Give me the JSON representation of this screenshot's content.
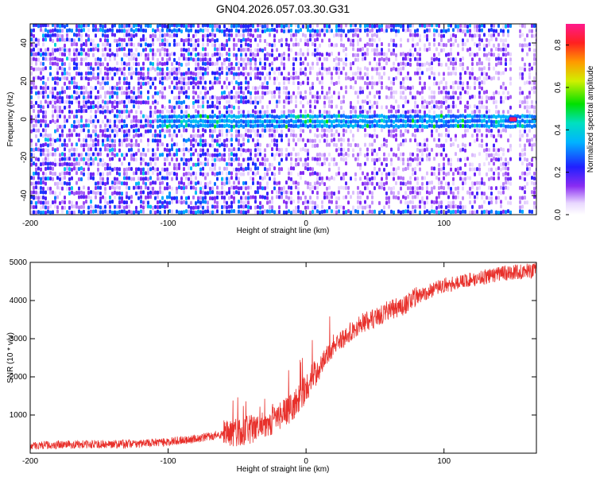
{
  "title": "GN04.2026.057.03.30.G31",
  "chart_data": [
    {
      "type": "heatmap",
      "title": "GN04.2026.057.03.30.G31",
      "xlabel": "Height of straight line (km)",
      "ylabel": "Frequency (Hz)",
      "xlim": [
        -200,
        167
      ],
      "ylim": [
        -50,
        50
      ],
      "xticks": [
        -200,
        -100,
        0,
        100
      ],
      "yticks": [
        -40,
        -20,
        0,
        20,
        40
      ],
      "colorbar": {
        "label": "Normalized spectral amplitude",
        "range": [
          0,
          0.9
        ],
        "ticks": [
          0.0,
          0.2,
          0.4,
          0.6,
          0.8
        ]
      },
      "features": [
        {
          "name": "carrier line",
          "frequency_hz": 0,
          "x_start_km": -110,
          "x_end_km": 167
        },
        {
          "name": "peak",
          "x_km": 150,
          "frequency_hz": 0,
          "amplitude": 0.85
        }
      ]
    },
    {
      "type": "line",
      "xlabel": "Height of straight line (km)",
      "ylabel": "SNR (10 * v/v)",
      "xlim": [
        -200,
        167
      ],
      "ylim": [
        0,
        5000
      ],
      "xticks": [
        -200,
        -100,
        0,
        100
      ],
      "yticks": [
        1000,
        2000,
        3000,
        4000,
        5000
      ],
      "series": [
        {
          "name": "SNR",
          "color": "#e8302b",
          "x": [
            -200,
            -180,
            -160,
            -140,
            -120,
            -100,
            -80,
            -60,
            -40,
            -30,
            -20,
            -10,
            0,
            10,
            20,
            30,
            40,
            50,
            60,
            70,
            80,
            90,
            100,
            120,
            140,
            167
          ],
          "y": [
            200,
            220,
            230,
            240,
            250,
            300,
            380,
            500,
            620,
            750,
            950,
            1200,
            1700,
            2300,
            2800,
            3100,
            3400,
            3550,
            3750,
            3850,
            4100,
            4250,
            4400,
            4550,
            4700,
            4800
          ]
        }
      ]
    }
  ]
}
